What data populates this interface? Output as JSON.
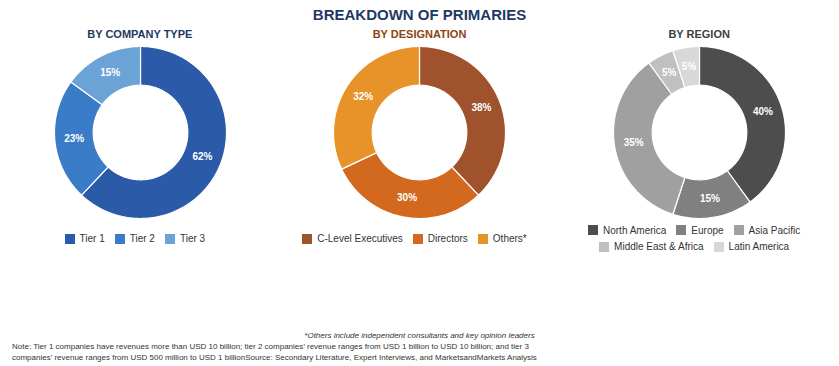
{
  "title": "BREAKDOWN OF PRIMARIES",
  "annotations": [
    "*Others include independent consultants and key opinion leaders",
    "Note: Tier 1 companies have revenues more than USD 10 billion; tier 2 companies’ revenue ranges from USD 1 billion to USD 10 billion; and tier 3",
    "companies’ revenue ranges from USD 500 million to USD 1 billionSource: Secondary Literature, Expert Interviews, and MarketsandMarkets Analysis"
  ],
  "chart_data": [
    {
      "type": "donut",
      "title": "BY COMPANY TYPE",
      "categories": [
        "Tier 1",
        "Tier 2",
        "Tier 3"
      ],
      "values": [
        62,
        23,
        15
      ],
      "value_labels": [
        "62%",
        "23%",
        "15%"
      ],
      "colors": [
        "#2B5BA8",
        "#3A7CC7",
        "#6BA3D6"
      ],
      "data_labels": true,
      "legend": "bottom"
    },
    {
      "type": "donut",
      "title": "BY DESIGNATION",
      "categories": [
        "C-Level Executives",
        "Directors",
        "Others*"
      ],
      "values": [
        38,
        30,
        32
      ],
      "value_labels": [
        "38%",
        "30%",
        "32%"
      ],
      "colors": [
        "#A0522D",
        "#D2691E",
        "#E8922A"
      ],
      "data_labels": true,
      "legend": "bottom"
    },
    {
      "type": "donut",
      "title": "BY REGION",
      "categories": [
        "North America",
        "Europe",
        "Asia Pacific",
        "Middle East & Africa",
        "Latin America"
      ],
      "values": [
        40,
        15,
        35,
        5,
        5
      ],
      "value_labels": [
        "40%",
        "15%",
        "35%",
        "5%",
        "5%"
      ],
      "colors": [
        "#4D4D4D",
        "#808080",
        "#A0A0A0",
        "#C0C0C0",
        "#D8D8D8"
      ],
      "data_labels": true,
      "legend": "bottom"
    }
  ]
}
